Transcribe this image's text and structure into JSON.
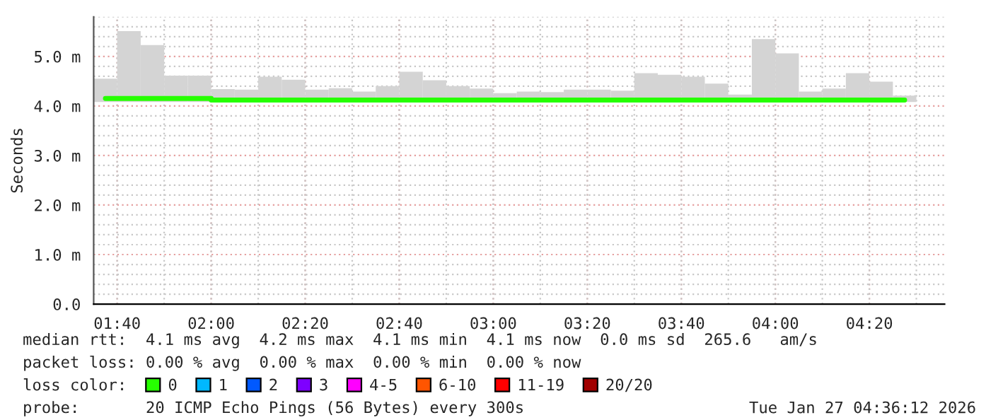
{
  "chart_data": {
    "type": "bar",
    "ylabel": "Seconds",
    "x": [
      "2026-01-27T01:37:30",
      "2026-01-27T01:42:30",
      "2026-01-27T01:47:30",
      "2026-01-27T01:52:30",
      "2026-01-27T01:57:30",
      "2026-01-27T02:02:30",
      "2026-01-27T02:07:30",
      "2026-01-27T02:12:30",
      "2026-01-27T02:17:30",
      "2026-01-27T02:22:30",
      "2026-01-27T02:27:30",
      "2026-01-27T02:32:30",
      "2026-01-27T02:37:30",
      "2026-01-27T02:42:30",
      "2026-01-27T02:47:30",
      "2026-01-27T02:52:30",
      "2026-01-27T02:57:30",
      "2026-01-27T03:02:30",
      "2026-01-27T03:07:30",
      "2026-01-27T03:12:30",
      "2026-01-27T03:17:30",
      "2026-01-27T03:22:30",
      "2026-01-27T03:27:30",
      "2026-01-27T03:32:30",
      "2026-01-27T03:37:30",
      "2026-01-27T03:42:30",
      "2026-01-27T03:47:30",
      "2026-01-27T03:52:30",
      "2026-01-27T03:57:30",
      "2026-01-27T04:02:30",
      "2026-01-27T04:07:30",
      "2026-01-27T04:12:30",
      "2026-01-27T04:17:30",
      "2026-01-27T04:22:30",
      "2026-01-27T04:27:30"
    ],
    "series": [
      {
        "color": "#d4d4d4",
        "base": [
          4.08,
          4.08,
          4.08,
          4.08,
          4.08,
          4.08,
          4.08,
          4.08,
          4.08,
          4.08,
          4.08,
          4.08,
          4.08,
          4.08,
          4.08,
          4.08,
          4.08,
          4.08,
          4.08,
          4.08,
          4.08,
          4.08,
          4.08,
          4.08,
          4.08,
          4.08,
          4.08,
          4.08,
          4.08,
          4.08,
          4.08,
          4.08,
          4.08,
          4.08,
          4.08
        ],
        "values": [
          0.47,
          1.43,
          1.15,
          0.53,
          0.53,
          0.26,
          0.25,
          0.51,
          0.45,
          0.25,
          0.28,
          0.21,
          0.32,
          0.61,
          0.44,
          0.32,
          0.27,
          0.18,
          0.21,
          0.2,
          0.25,
          0.25,
          0.23,
          0.58,
          0.55,
          0.51,
          0.37,
          0.15,
          1.27,
          0.98,
          0.21,
          0.27,
          0.58,
          0.41,
          0.13
        ]
      },
      {
        "type": "step",
        "name": "0",
        "color": "#26ff00",
        "values": [
          4.15,
          4.15,
          4.15,
          4.15,
          4.15,
          4.12,
          4.12,
          4.12,
          4.12,
          4.12,
          4.12,
          4.12,
          4.12,
          4.12,
          4.12,
          4.12,
          4.12,
          4.12,
          4.12,
          4.12,
          4.12,
          4.12,
          4.12,
          4.12,
          4.12,
          4.12,
          4.12,
          4.12,
          4.12,
          4.12,
          4.12,
          4.12,
          4.12,
          4.12,
          4.12
        ]
      },
      {
        "type": "step",
        "name": "1",
        "color": "#00b8ff",
        "values": [
          null,
          null,
          null,
          null,
          null,
          null,
          null,
          null,
          null,
          null,
          null,
          null,
          null,
          null,
          null,
          null,
          null,
          null,
          null,
          null,
          null,
          null,
          null,
          null,
          null,
          null,
          null,
          null,
          null,
          null,
          null,
          null,
          null,
          null,
          null
        ]
      },
      {
        "type": "step",
        "name": "2",
        "color": "#0059ff",
        "values": [
          null,
          null,
          null,
          null,
          null,
          null,
          null,
          null,
          null,
          null,
          null,
          null,
          null,
          null,
          null,
          null,
          null,
          null,
          null,
          null,
          null,
          null,
          null,
          null,
          null,
          null,
          null,
          null,
          null,
          null,
          null,
          null,
          null,
          null,
          null
        ]
      },
      {
        "type": "step",
        "name": "3",
        "color": "#7e00ff",
        "values": [
          null,
          null,
          null,
          null,
          null,
          null,
          null,
          null,
          null,
          null,
          null,
          null,
          null,
          null,
          null,
          null,
          null,
          null,
          null,
          null,
          null,
          null,
          null,
          null,
          null,
          null,
          null,
          null,
          null,
          null,
          null,
          null,
          null,
          null,
          null
        ]
      },
      {
        "type": "step",
        "name": "4-5",
        "color": "#ff00ff",
        "values": [
          null,
          null,
          null,
          null,
          null,
          null,
          null,
          null,
          null,
          null,
          null,
          null,
          null,
          null,
          null,
          null,
          null,
          null,
          null,
          null,
          null,
          null,
          null,
          null,
          null,
          null,
          null,
          null,
          null,
          null,
          null,
          null,
          null,
          null,
          null
        ]
      },
      {
        "type": "step",
        "name": "6-10",
        "color": "#ff5500",
        "values": [
          null,
          null,
          null,
          null,
          null,
          null,
          null,
          null,
          null,
          null,
          null,
          null,
          null,
          null,
          null,
          null,
          null,
          null,
          null,
          null,
          null,
          null,
          null,
          null,
          null,
          null,
          null,
          null,
          null,
          null,
          null,
          null,
          null,
          null,
          null
        ]
      },
      {
        "type": "step",
        "name": "11-19",
        "color": "#ff0000",
        "values": [
          null,
          null,
          null,
          null,
          null,
          null,
          null,
          null,
          null,
          null,
          null,
          null,
          null,
          null,
          null,
          null,
          null,
          null,
          null,
          null,
          null,
          null,
          null,
          null,
          null,
          null,
          null,
          null,
          null,
          null,
          null,
          null,
          null,
          null,
          null
        ]
      },
      {
        "type": "step",
        "name": "20/20",
        "color": "#a10000",
        "values": [
          null,
          null,
          null,
          null,
          null,
          null,
          null,
          null,
          null,
          null,
          null,
          null,
          null,
          null,
          null,
          null,
          null,
          null,
          null,
          null,
          null,
          null,
          null,
          null,
          null,
          null,
          null,
          null,
          null,
          null,
          null,
          null,
          null,
          null,
          null
        ]
      }
    ],
    "xlim": [
      "2026-01-27T01:35",
      "2026-01-27T04:36"
    ],
    "xticks": [
      {
        "value": "2026-01-27T01:40",
        "label": "01:40"
      },
      {
        "value": "2026-01-27T02:00",
        "label": "02:00"
      },
      {
        "value": "2026-01-27T02:20",
        "label": "02:20"
      },
      {
        "value": "2026-01-27T02:40",
        "label": "02:40"
      },
      {
        "value": "2026-01-27T03:00",
        "label": "03:00"
      },
      {
        "value": "2026-01-27T03:20",
        "label": "03:20"
      },
      {
        "value": "2026-01-27T03:40",
        "label": "03:40"
      },
      {
        "value": "2026-01-27T04:00",
        "label": "04:00"
      },
      {
        "value": "2026-01-27T04:20",
        "label": "04:20"
      }
    ],
    "ylim": [
      0,
      5.8
    ],
    "yticks": [
      {
        "value": 0,
        "label": "0.0"
      },
      {
        "value": 1,
        "label": "1.0 m"
      },
      {
        "value": 2,
        "label": "2.0 m"
      },
      {
        "value": 3,
        "label": "3.0 m"
      },
      {
        "value": 4,
        "label": "4.0 m"
      },
      {
        "value": 5,
        "label": "5.0 m"
      }
    ],
    "grid": true,
    "legend": "bottom",
    "legend_title": "loss color:",
    "annotations": [
      "median rtt:  4.1 ms avg  4.2 ms max  4.1 ms min  4.1 ms now  0.0 ms sd  265.6   am/s",
      "packet loss: 0.00 % avg  0.00 % max  0.00 % min  0.00 % now",
      "probe:       20 ICMP Echo Pings (56 Bytes) every 300s",
      "Tue Jan 27 04:36:12 2026"
    ]
  }
}
